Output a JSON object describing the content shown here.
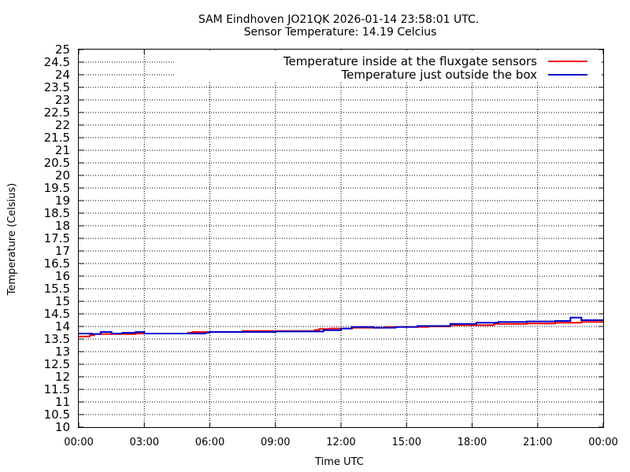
{
  "chart_data": {
    "type": "line",
    "title": "SAM Eindhoven JO21QK 2026-01-14 23:58:01 UTC.",
    "subtitle": "Sensor Temperature: 14.19 Celcius",
    "xlabel": "Time UTC",
    "ylabel": "Temperature (Celsius)",
    "xlim": [
      0,
      24
    ],
    "ylim": [
      10,
      25
    ],
    "x_tick_labels": [
      "00:00",
      "03:00",
      "06:00",
      "09:00",
      "12:00",
      "15:00",
      "18:00",
      "21:00",
      "00:00"
    ],
    "y_tick_labels": [
      "10",
      "10.5",
      "11",
      "11.5",
      "12",
      "12.5",
      "13",
      "13.5",
      "14",
      "14.5",
      "15",
      "15.5",
      "16",
      "16.5",
      "17",
      "17.5",
      "18",
      "18.5",
      "19",
      "19.5",
      "20",
      "20.5",
      "21",
      "21.5",
      "22",
      "22.5",
      "23",
      "23.5",
      "24",
      "24.5",
      "25"
    ],
    "grid": true,
    "legend_position": "top-right",
    "series": [
      {
        "name": "Temperature inside at the fluxgate sensors",
        "color": "#ee0000",
        "x": [
          0,
          0.5,
          0.7,
          2,
          2.6,
          3,
          5,
          5.2,
          7.5,
          10.8,
          11,
          11.5,
          12.5,
          14,
          16,
          17,
          19,
          20.5,
          21.8,
          23,
          24
        ],
        "y": [
          13.6,
          13.65,
          13.7,
          13.7,
          13.72,
          13.72,
          13.75,
          13.78,
          13.82,
          13.86,
          13.9,
          13.92,
          13.95,
          13.98,
          14.0,
          14.05,
          14.1,
          14.12,
          14.15,
          14.18,
          14.2
        ]
      },
      {
        "name": "Temperature just outside the box",
        "color": "#0000cc",
        "x": [
          0,
          0.6,
          1,
          1.5,
          2,
          2.6,
          3,
          4.5,
          5.8,
          6,
          7.5,
          9,
          10.8,
          11.2,
          12,
          12.5,
          13.5,
          14.5,
          15.5,
          17,
          18.2,
          19.2,
          20.5,
          21.8,
          22.5,
          23,
          24
        ],
        "y": [
          13.72,
          13.7,
          13.78,
          13.72,
          13.75,
          13.78,
          13.72,
          13.72,
          13.75,
          13.78,
          13.78,
          13.8,
          13.8,
          13.85,
          13.92,
          13.98,
          13.95,
          13.98,
          14.02,
          14.1,
          14.15,
          14.18,
          14.2,
          14.22,
          14.35,
          14.25,
          14.25
        ]
      }
    ]
  }
}
